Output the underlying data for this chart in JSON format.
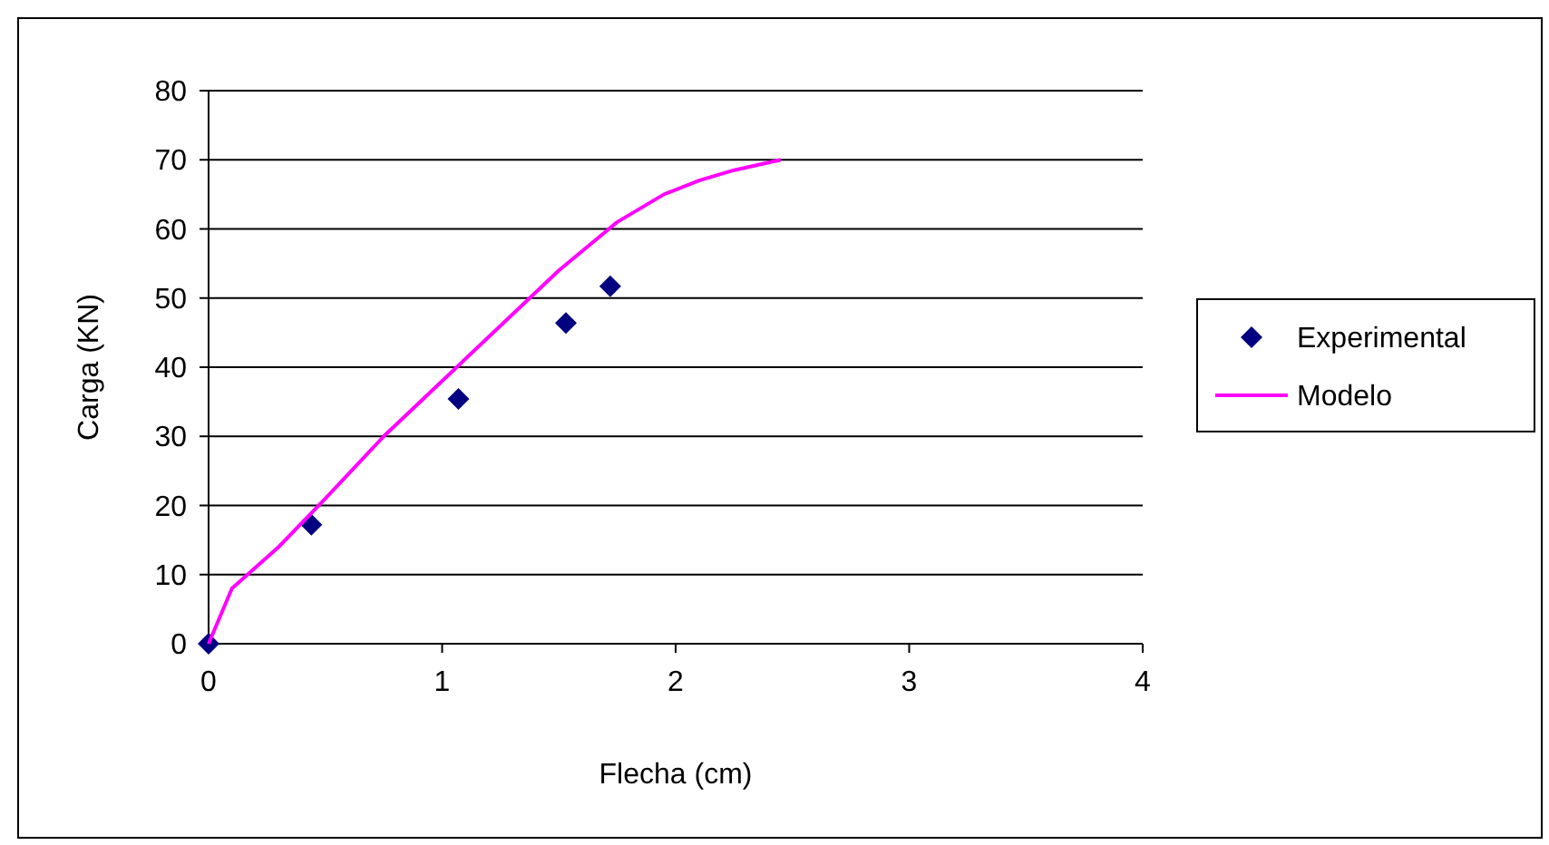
{
  "chart_data": {
    "type": "scatter",
    "xlabel": "Flecha (cm)",
    "ylabel": "Carga (KN)",
    "xlim": [
      0,
      4
    ],
    "xticks": [
      0,
      1,
      2,
      3,
      4
    ],
    "ylim": [
      0,
      80
    ],
    "yticks": [
      0,
      10,
      20,
      30,
      40,
      50,
      60,
      70,
      80
    ],
    "grid": "y",
    "legend": "right",
    "series": [
      {
        "name": "Experimental",
        "color": "#000080",
        "marker": "diamond",
        "x": [
          0,
          0.44,
          1.07,
          1.53,
          1.72
        ],
        "values": [
          0,
          17.2,
          35.4,
          46.4,
          51.7
        ]
      },
      {
        "name": "Modelo",
        "type": "line",
        "color": "#ff00ff",
        "marker": "none",
        "x": [
          0,
          0.1,
          0.3,
          0.5,
          0.75,
          1,
          1.25,
          1.5,
          1.75,
          1.95,
          2.1,
          2.25,
          2.45
        ],
        "values": [
          0,
          8,
          14,
          21,
          30,
          38,
          46,
          54,
          61,
          65,
          67,
          68.5,
          70
        ]
      }
    ]
  }
}
